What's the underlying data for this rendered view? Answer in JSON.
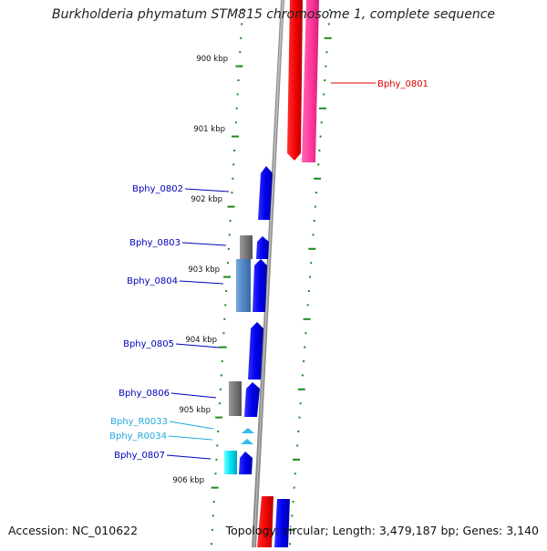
{
  "title": "Burkholderia phymatum STM815 chromosome 1, complete sequence",
  "accession": "Accession: NC_010622",
  "summary": "Topology: circular; Length: 3,479,187 bp; Genes: 3,140",
  "colors": {
    "backbone": "#8a8a8a",
    "tick": "#1a8a1a",
    "cds": "#0000ee",
    "cds_label": "#0000bb",
    "rna": "#00ccdd",
    "rna_label": "#22aadd",
    "pseudo": "#777777",
    "reverse_red": "#ee0000",
    "reverse_pink": "#ff3399",
    "highlight_label": "#dd0000"
  },
  "ruler_labels": [
    "900 kbp",
    "901 kbp",
    "902 kbp",
    "903 kbp",
    "904 kbp",
    "905 kbp",
    "906 kbp"
  ],
  "gene_labels": [
    {
      "id": "gene-label-bphy-0801",
      "text": "Bphy_0801",
      "type": "highlight"
    },
    {
      "id": "gene-label-bphy-0802",
      "text": "Bphy_0802",
      "type": "cds"
    },
    {
      "id": "gene-label-bphy-0803",
      "text": "Bphy_0803",
      "type": "cds"
    },
    {
      "id": "gene-label-bphy-0804",
      "text": "Bphy_0804",
      "type": "cds"
    },
    {
      "id": "gene-label-bphy-0805",
      "text": "Bphy_0805",
      "type": "cds"
    },
    {
      "id": "gene-label-bphy-0806",
      "text": "Bphy_0806",
      "type": "cds"
    },
    {
      "id": "gene-label-bphy-r0033",
      "text": "Bphy_R0033",
      "type": "rna"
    },
    {
      "id": "gene-label-bphy-r0034",
      "text": "Bphy_R0034",
      "type": "rna"
    },
    {
      "id": "gene-label-bphy-0807",
      "text": "Bphy_0807",
      "type": "cds"
    }
  ]
}
